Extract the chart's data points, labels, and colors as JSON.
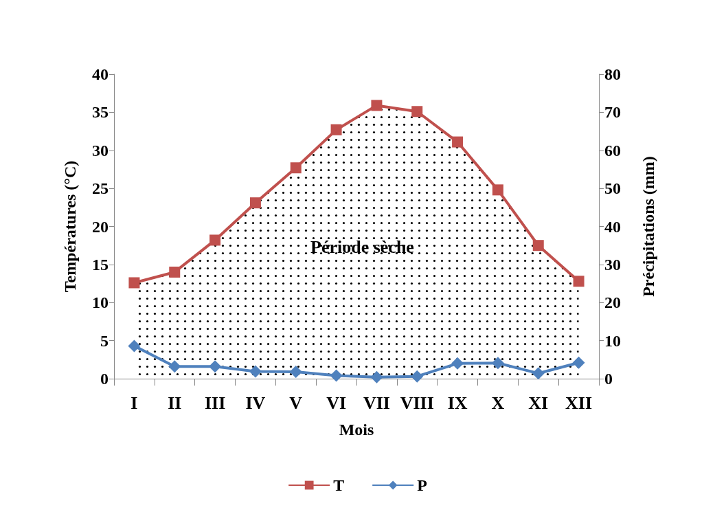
{
  "chart_data": {
    "type": "line",
    "xlabel": "Mois",
    "ylabel": "Températures (°C)",
    "y2label": "Précipitations (mm)",
    "categories": [
      "I",
      "II",
      "III",
      "IV",
      "V",
      "VI",
      "VII",
      "VIII",
      "IX",
      "X",
      "XI",
      "XII"
    ],
    "series": [
      {
        "name": "T",
        "type": "area",
        "color": "#c0504d",
        "marker": "square",
        "values": [
          12.6,
          14.0,
          18.2,
          23.1,
          27.7,
          32.7,
          35.9,
          35.1,
          31.1,
          24.8,
          17.5,
          12.8
        ]
      },
      {
        "name": "P",
        "color": "#4f81bd",
        "marker": "diamond",
        "axis": "y2",
        "values": [
          8.6,
          3.2,
          3.2,
          1.9,
          1.8,
          0.8,
          0.4,
          0.6,
          4.0,
          4.1,
          1.4,
          4.2
        ]
      }
    ],
    "ylim": [
      0,
      40
    ],
    "yticks": [
      0,
      5,
      10,
      15,
      20,
      25,
      30,
      35,
      40
    ],
    "y2lim": [
      0,
      80
    ],
    "y2ticks": [
      0,
      10,
      20,
      30,
      40,
      50,
      60,
      70,
      80
    ],
    "annotations": [
      "Période sèche"
    ],
    "grid": false,
    "legend": "bottom",
    "line_style": "solid"
  }
}
